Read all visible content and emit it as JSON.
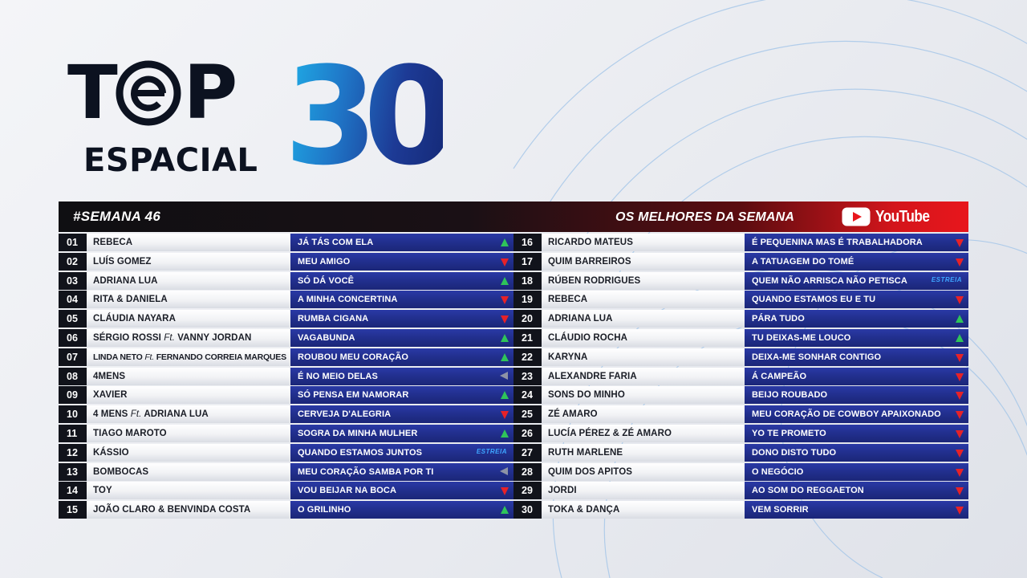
{
  "logo": {
    "top_word_t": "T",
    "top_word_p": "P",
    "espacial": "ESPACIAL",
    "number": "30"
  },
  "header": {
    "week": "#SEMANA 46",
    "subtitle": "OS MELHORES DA SEMANA",
    "platform": "YouTube",
    "colors": {
      "header_dark": "#0f0f12",
      "header_red": "#e8161c",
      "song_blue": "#22308f",
      "up": "#2fc45a",
      "down": "#e62228",
      "same": "#8d93a6"
    }
  },
  "entries": [
    {
      "pos": "01",
      "artist": "REBECA",
      "song": "JÁ TÁS COM ELA",
      "trend": "up"
    },
    {
      "pos": "02",
      "artist": "LUÍS GOMEZ",
      "song": "MEU AMIGO",
      "trend": "down"
    },
    {
      "pos": "03",
      "artist": "ADRIANA LUA",
      "song": "SÓ DÁ VOCÊ",
      "trend": "up"
    },
    {
      "pos": "04",
      "artist": "RITA & DANIELA",
      "song": "A MINHA CONCERTINA",
      "trend": "down"
    },
    {
      "pos": "05",
      "artist": "CLÁUDIA NAYARA",
      "song": "RUMBA CIGANA",
      "trend": "down"
    },
    {
      "pos": "06",
      "artist": "SÉRGIO ROSSI",
      "feat_label": "Ft.",
      "feat": "VANNY JORDAN",
      "song": "VAGABUNDA",
      "trend": "up"
    },
    {
      "pos": "07",
      "artist": "LINDA NETO",
      "feat_label": "Ft.",
      "feat": "FERNANDO CORREIA MARQUES",
      "song": "ROUBOU MEU CORAÇÃO",
      "trend": "up"
    },
    {
      "pos": "08",
      "artist": "4MENS",
      "song": "É NO MEIO DELAS",
      "trend": "same"
    },
    {
      "pos": "09",
      "artist": "XAVIER",
      "song": "SÓ PENSA EM NAMORAR",
      "trend": "up"
    },
    {
      "pos": "10",
      "artist": "4 MENS",
      "feat_label": "Ft.",
      "feat": "ADRIANA LUA",
      "song": "CERVEJA D'ALEGRIA",
      "trend": "down"
    },
    {
      "pos": "11",
      "artist": "TIAGO MAROTO",
      "song": "SOGRA DA MINHA MULHER",
      "trend": "up"
    },
    {
      "pos": "12",
      "artist": "KÁSSIO",
      "song": "QUANDO ESTAMOS JUNTOS",
      "trend": "new",
      "badge": "ESTREIA"
    },
    {
      "pos": "13",
      "artist": "BOMBOCAS",
      "song": "MEU CORAÇÃO SAMBA POR TI",
      "trend": "same"
    },
    {
      "pos": "14",
      "artist": "TOY",
      "song": "VOU BEIJAR NA BOCA",
      "trend": "down"
    },
    {
      "pos": "15",
      "artist": "JOÃO CLARO & BENVINDA COSTA",
      "song": "O GRILINHO",
      "trend": "up"
    },
    {
      "pos": "16",
      "artist": "RICARDO MATEUS",
      "song": "É PEQUENINA MAS É TRABALHADORA",
      "trend": "down"
    },
    {
      "pos": "17",
      "artist": "QUIM BARREIROS",
      "song": "A TATUAGEM DO TOMÉ",
      "trend": "down"
    },
    {
      "pos": "18",
      "artist": "RÚBEN RODRIGUES",
      "song": "QUEM NÃO ARRISCA NÃO PETISCA",
      "trend": "new",
      "badge": "ESTREIA"
    },
    {
      "pos": "19",
      "artist": "REBECA",
      "song": "QUANDO ESTAMOS EU E TU",
      "trend": "down"
    },
    {
      "pos": "20",
      "artist": "ADRIANA LUA",
      "song": "PÁRA TUDO",
      "trend": "up"
    },
    {
      "pos": "21",
      "artist": "CLÁUDIO ROCHA",
      "song": "TU DEIXAS-ME LOUCO",
      "trend": "up"
    },
    {
      "pos": "22",
      "artist": "KARYNA",
      "song": "DEIXA-ME SONHAR CONTIGO",
      "trend": "down"
    },
    {
      "pos": "23",
      "artist": "ALEXANDRE FARIA",
      "song": "Á CAMPEÃO",
      "trend": "down"
    },
    {
      "pos": "24",
      "artist": "SONS DO MINHO",
      "song": "BEIJO ROUBADO",
      "trend": "down"
    },
    {
      "pos": "25",
      "artist": "ZÉ AMARO",
      "song": "MEU CORAÇÃO DE COWBOY APAIXONADO",
      "trend": "down"
    },
    {
      "pos": "26",
      "artist": "LUCÍA PÉREZ & ZÉ AMARO",
      "song": "YO TE PROMETO",
      "trend": "down"
    },
    {
      "pos": "27",
      "artist": "RUTH MARLENE",
      "song": "DONO DISTO TUDO",
      "trend": "down"
    },
    {
      "pos": "28",
      "artist": "QUIM DOS APITOS",
      "song": "O NEGÓCIO",
      "trend": "down"
    },
    {
      "pos": "29",
      "artist": "JORDI",
      "song": "AO SOM DO REGGAETON",
      "trend": "down"
    },
    {
      "pos": "30",
      "artist": "TOKA & DANÇA",
      "song": "VEM SORRIR",
      "trend": "down"
    }
  ]
}
